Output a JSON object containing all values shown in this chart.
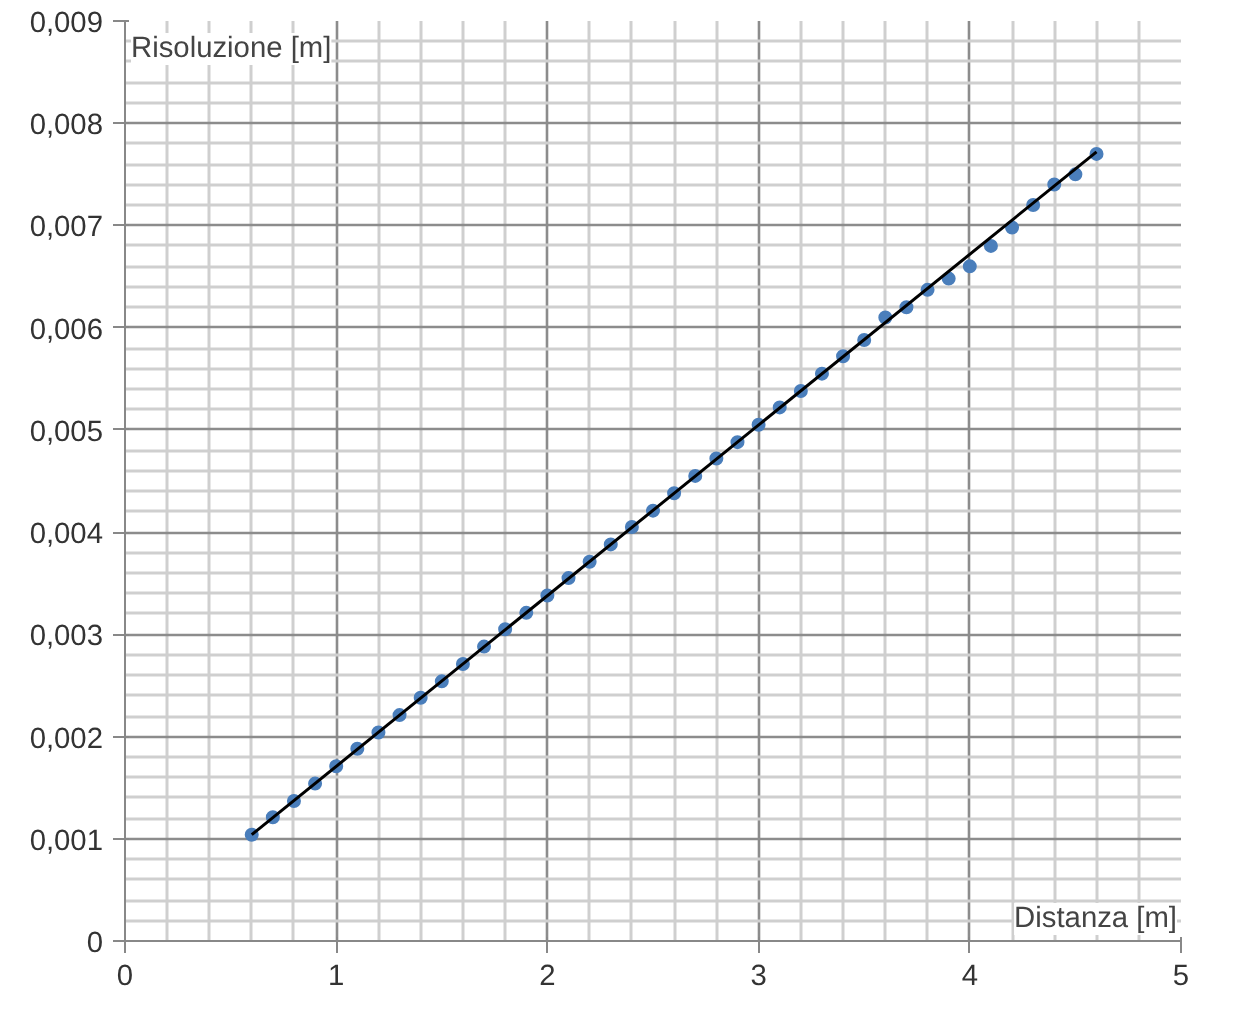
{
  "chart_data": {
    "type": "scatter",
    "xlabel": "Distanza [m]",
    "ylabel": "Risoluzione [m]",
    "xlim": [
      0,
      5
    ],
    "ylim": [
      0,
      0.009
    ],
    "xticks": [
      0,
      1,
      2,
      3,
      4,
      5
    ],
    "yticks": [
      {
        "value": 0,
        "label": "0"
      },
      {
        "value": 0.001,
        "label": "0,001"
      },
      {
        "value": 0.002,
        "label": "0,002"
      },
      {
        "value": 0.003,
        "label": "0,003"
      },
      {
        "value": 0.004,
        "label": "0,004"
      },
      {
        "value": 0.005,
        "label": "0,005"
      },
      {
        "value": 0.006,
        "label": "0,006"
      },
      {
        "value": 0.007,
        "label": "0,007"
      },
      {
        "value": 0.008,
        "label": "0,008"
      },
      {
        "value": 0.009,
        "label": "0,009"
      }
    ],
    "grid": true,
    "series": [
      {
        "marker": "circle",
        "color": "#4a7ebb",
        "x": [
          0.6,
          0.7,
          0.8,
          0.9,
          1.0,
          1.1,
          1.2,
          1.3,
          1.4,
          1.5,
          1.6,
          1.7,
          1.8,
          1.9,
          2.0,
          2.1,
          2.2,
          2.3,
          2.4,
          2.5,
          2.6,
          2.7,
          2.8,
          2.9,
          3.0,
          3.1,
          3.2,
          3.3,
          3.4,
          3.5,
          3.6,
          3.7,
          3.8,
          3.9,
          4.0,
          4.1,
          4.2,
          4.3,
          4.4,
          4.5,
          4.6
        ],
        "values": [
          0.00104,
          0.00121,
          0.00137,
          0.00154,
          0.00171,
          0.00188,
          0.00204,
          0.00221,
          0.00238,
          0.00254,
          0.00271,
          0.00288,
          0.00305,
          0.00321,
          0.00338,
          0.00355,
          0.00371,
          0.00388,
          0.00405,
          0.00421,
          0.00438,
          0.00455,
          0.00472,
          0.00488,
          0.00505,
          0.00522,
          0.00538,
          0.00555,
          0.00572,
          0.00588,
          0.0061,
          0.0062,
          0.00637,
          0.00648,
          0.0066,
          0.0068,
          0.00698,
          0.0072,
          0.0074,
          0.0075,
          0.0077
        ]
      },
      {
        "type": "line",
        "color": "#000000",
        "x": [
          0.6,
          4.6
        ],
        "values": [
          0.00104,
          0.00772
        ]
      }
    ]
  }
}
